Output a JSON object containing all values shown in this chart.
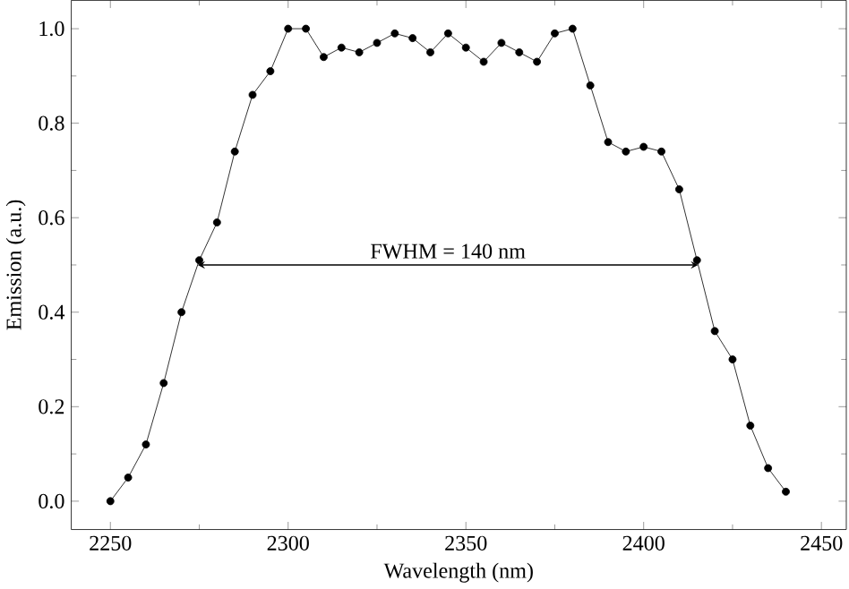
{
  "chart_data": {
    "type": "line",
    "xlabel": "Wavelength (nm)",
    "ylabel": "Emission (a.u.)",
    "x": [
      2250,
      2255,
      2260,
      2265,
      2270,
      2275,
      2280,
      2285,
      2290,
      2295,
      2300,
      2305,
      2310,
      2315,
      2320,
      2325,
      2330,
      2335,
      2340,
      2345,
      2350,
      2355,
      2360,
      2365,
      2370,
      2375,
      2380,
      2385,
      2390,
      2395,
      2400,
      2405,
      2410,
      2415,
      2420,
      2425,
      2430,
      2435,
      2440
    ],
    "series": [
      {
        "color": "#000000",
        "values": [
          0.0,
          0.05,
          0.12,
          0.25,
          0.4,
          0.51,
          0.59,
          0.74,
          0.86,
          0.91,
          1.0,
          1.0,
          0.94,
          0.96,
          0.95,
          0.97,
          0.99,
          0.98,
          0.95,
          0.99,
          0.96,
          0.93,
          0.97,
          0.95,
          0.93,
          0.99,
          1.0,
          0.88,
          0.76,
          0.74,
          0.75,
          0.74,
          0.66,
          0.51,
          0.36,
          0.3,
          0.16,
          0.07,
          0.02
        ]
      }
    ],
    "xlim": [
      2239,
      2457
    ],
    "ylim": [
      -0.06,
      1.06
    ],
    "xticks": [
      2250,
      2300,
      2350,
      2400,
      2450
    ],
    "yticks": [
      {
        "value": 0,
        "label": "0.0"
      },
      {
        "value": 0.2,
        "label": "0.2"
      },
      {
        "value": 0.4,
        "label": "0.4"
      },
      {
        "value": 0.6,
        "label": "0.6"
      },
      {
        "value": 0.8,
        "label": "0.8"
      },
      {
        "value": 1.0,
        "label": "1.0"
      }
    ],
    "annotations": [
      "FWHM = 140 nm"
    ],
    "marker": "circle",
    "line_style": "solid",
    "grid": false
  }
}
